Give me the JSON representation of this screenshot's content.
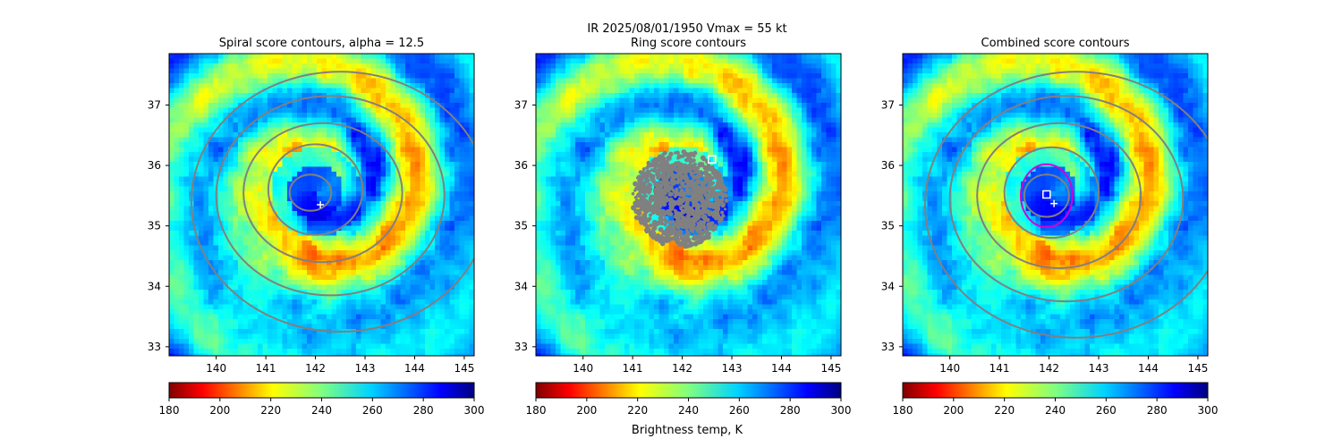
{
  "figure": {
    "suptitle_line1": "IR  2025/08/01/1950    Vmax = 55 kt",
    "colorbar_label": "Brightness temp, K"
  },
  "colormap": {
    "name": "jet_r",
    "range": [
      180,
      300
    ],
    "ticks": [
      180,
      200,
      220,
      240,
      260,
      280,
      300
    ],
    "tick_labels": [
      "180",
      "200",
      "220",
      "240",
      "260",
      "280",
      "300"
    ]
  },
  "colors": {
    "contour": "#808080",
    "ring_highlight": "#d400d4",
    "marker": "#ffffff"
  },
  "chart_data": [
    {
      "type": "heatmap",
      "title": "Spiral score contours, alpha = 12.5",
      "xlim": [
        139.05,
        145.2
      ],
      "ylim": [
        32.85,
        37.85
      ],
      "xticks": [
        140,
        141,
        142,
        143,
        144,
        145
      ],
      "yticks": [
        33,
        34,
        35,
        36,
        37
      ],
      "center_plus": [
        142.1,
        35.35
      ],
      "center_square": null,
      "ring_circle": null,
      "contour_rings": [
        {
          "c": [
            141.9,
            35.55
          ],
          "rx": 0.42,
          "ry": 0.3
        },
        {
          "c": [
            142.0,
            35.6
          ],
          "rx": 0.95,
          "ry": 0.75
        },
        {
          "c": [
            142.15,
            35.55
          ],
          "rx": 1.6,
          "ry": 1.15
        },
        {
          "c": [
            142.3,
            35.5
          ],
          "rx": 2.3,
          "ry": 1.65
        },
        {
          "c": [
            142.5,
            35.4
          ],
          "rx": 3.0,
          "ry": 2.15
        }
      ]
    },
    {
      "type": "heatmap",
      "title": "Ring score contours",
      "xlim": [
        139.05,
        145.2
      ],
      "ylim": [
        32.85,
        37.85
      ],
      "xticks": [
        140,
        141,
        142,
        143,
        144,
        145
      ],
      "yticks": [
        33,
        34,
        35,
        36,
        37
      ],
      "center_plus": null,
      "center_square": [
        142.6,
        36.1
      ],
      "ring_circle": null,
      "ring_blob": {
        "c": [
          141.95,
          35.45
        ],
        "rx": 0.95,
        "ry": 0.8
      },
      "contour_rings": []
    },
    {
      "type": "heatmap",
      "title": "Combined score contours",
      "xlim": [
        139.05,
        145.2
      ],
      "ylim": [
        32.85,
        37.85
      ],
      "xticks": [
        140,
        141,
        142,
        143,
        144,
        145
      ],
      "yticks": [
        33,
        34,
        35,
        36,
        37
      ],
      "center_plus": [
        142.1,
        35.37
      ],
      "center_square": [
        141.95,
        35.52
      ],
      "ring_circle": {
        "c": [
          141.95,
          35.5
        ],
        "r": 0.52
      },
      "contour_rings": [
        {
          "c": [
            141.95,
            35.5
          ],
          "rx": 0.45,
          "ry": 0.35
        },
        {
          "c": [
            142.05,
            35.55
          ],
          "rx": 0.95,
          "ry": 0.75
        },
        {
          "c": [
            142.2,
            35.5
          ],
          "rx": 1.65,
          "ry": 1.2
        },
        {
          "c": [
            142.35,
            35.45
          ],
          "rx": 2.35,
          "ry": 1.7
        },
        {
          "c": [
            142.55,
            35.35
          ],
          "rx": 3.05,
          "ry": 2.2
        }
      ]
    }
  ]
}
